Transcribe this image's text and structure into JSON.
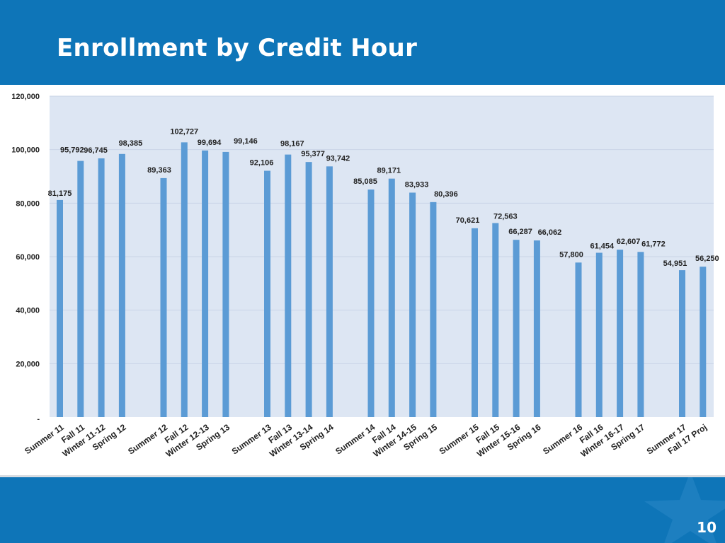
{
  "header": {
    "title": "Enrollment by Credit Hour"
  },
  "footer": {
    "page_number": "10"
  },
  "colors": {
    "header_bg": "#0e75b8",
    "bar": "#5b9bd5",
    "plot_bg": "#dde6f3",
    "grid": "#c9d4e6"
  },
  "chart_data": {
    "type": "bar",
    "title": "",
    "xlabel": "",
    "ylabel": "",
    "ylim": [
      0,
      120000
    ],
    "yticks": [
      0,
      20000,
      40000,
      60000,
      80000,
      100000,
      120000
    ],
    "ytick_labels": [
      "-",
      "20,000",
      "40,000",
      "60,000",
      "80,000",
      "100,000",
      "120,000"
    ],
    "grid": true,
    "legend": "none",
    "groups": [
      {
        "categories": [
          "Summer 11",
          "Fall 11",
          "Winter 11-12",
          "Spring 12"
        ],
        "values": [
          81175,
          95792,
          96745,
          98385
        ],
        "labels": [
          "81,175",
          "95,792",
          "96,745",
          "98,385"
        ]
      },
      {
        "categories": [
          "Summer 12",
          "Fall 12",
          "Winter 12-13",
          "Spring 13"
        ],
        "values": [
          89363,
          102727,
          99694,
          99146
        ],
        "labels": [
          "89,363",
          "102,727",
          "99,694",
          "99,146"
        ]
      },
      {
        "categories": [
          "Summer 13",
          "Fall 13",
          "Winter 13-14",
          "Spring 14"
        ],
        "values": [
          92106,
          98167,
          95377,
          93742
        ],
        "labels": [
          "92,106",
          "98,167",
          "95,377",
          "93,742"
        ]
      },
      {
        "categories": [
          "Summer 14",
          "Fall 14",
          "Winter 14-15",
          "Spring 15"
        ],
        "values": [
          85085,
          89171,
          83933,
          80396
        ],
        "labels": [
          "85,085",
          "89,171",
          "83,933",
          "80,396"
        ]
      },
      {
        "categories": [
          "Summer 15",
          "Fall 15",
          "Winter 15-16",
          "Spring 16"
        ],
        "values": [
          70621,
          72563,
          66287,
          66062
        ],
        "labels": [
          "70,621",
          "72,563",
          "66,287",
          "66,062"
        ]
      },
      {
        "categories": [
          "Summer 16",
          "Fall 16",
          "Winter 16-17",
          "Spring 17"
        ],
        "values": [
          57800,
          61454,
          62607,
          61772
        ],
        "labels": [
          "57,800",
          "61,454",
          "62,607",
          "61,772"
        ]
      },
      {
        "categories": [
          "Summer 17",
          "Fall 17 Proj"
        ],
        "values": [
          54951,
          56250
        ],
        "labels": [
          "54,951",
          "56,250"
        ]
      }
    ]
  }
}
